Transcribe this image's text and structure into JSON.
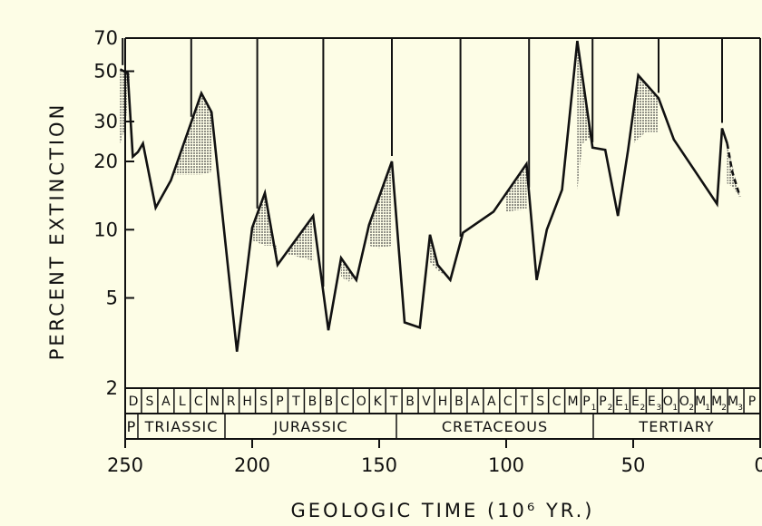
{
  "chart_data": {
    "type": "line",
    "title": "",
    "xlabel": "GEOLOGIC TIME (10⁶ YR.)",
    "ylabel": "PERCENT EXTINCTION",
    "x_reversed": true,
    "xlim": [
      250,
      0
    ],
    "ylim": [
      2,
      70
    ],
    "yscale": "log",
    "xticks": [
      250,
      200,
      150,
      100,
      50,
      0
    ],
    "xtick_labels": [
      "250",
      "200",
      "150",
      "100",
      "50",
      "0"
    ],
    "yticks": [
      2,
      5,
      10,
      20,
      30,
      50,
      70
    ],
    "ytick_labels": [
      "2",
      "5",
      "10",
      "20",
      "30",
      "50",
      "70"
    ],
    "grid": false,
    "legend": "none",
    "series": [
      {
        "x": [
          252,
          249,
          247,
          245,
          243,
          238,
          232,
          220,
          216,
          206,
          200,
          195,
          190,
          176,
          170,
          165,
          159,
          154,
          145,
          140,
          134,
          130,
          127,
          122,
          117,
          105,
          92,
          88,
          84,
          78,
          72,
          66,
          61,
          56,
          52,
          48,
          40,
          34,
          17,
          15,
          13
        ],
        "y": [
          51,
          49,
          21,
          22,
          24,
          12.5,
          16.5,
          40,
          33,
          2.9,
          10.2,
          14.5,
          7,
          11.5,
          3.6,
          7.5,
          6,
          10.5,
          20,
          3.9,
          3.7,
          9.5,
          7,
          6,
          9.7,
          12,
          19.5,
          6,
          10,
          15,
          68,
          23,
          22.5,
          11.5,
          22.5,
          48,
          38,
          25,
          13,
          28,
          24
        ]
      },
      {
        "x": [
          13,
          11,
          8
        ],
        "y": [
          24,
          18,
          14
        ],
        "dashed": true
      }
    ],
    "shaded_regions": [
      {
        "x": [
          252,
          249,
          248,
          250,
          252
        ],
        "upper": [
          51,
          49,
          49,
          28,
          24
        ]
      },
      {
        "x": [
          232,
          220,
          216
        ],
        "lower": [
          17.5,
          17.5,
          18
        ]
      },
      {
        "x": [
          200,
          195,
          190
        ],
        "lower": [
          9,
          8.5,
          8.5
        ]
      },
      {
        "x": [
          176,
          180,
          186
        ],
        "lower": [
          7.3,
          7.5,
          7.8
        ]
      },
      {
        "x": [
          159,
          162,
          165
        ],
        "lower": [
          6.3,
          5.9,
          6.2
        ]
      },
      {
        "x": [
          145,
          150,
          154
        ],
        "lower": [
          8.5,
          8.3,
          8.5
        ]
      },
      {
        "x": [
          130,
          127,
          124
        ],
        "lower": [
          7.2,
          6.6,
          6.3
        ]
      },
      {
        "x": [
          92,
          96,
          100
        ],
        "lower": [
          12.3,
          12.2,
          12
        ]
      },
      {
        "x": [
          66,
          70,
          72
        ],
        "lower": [
          26,
          24,
          15
        ]
      },
      {
        "x": [
          40,
          45,
          50
        ],
        "lower": [
          27,
          27,
          24
        ]
      },
      {
        "x": [
          13,
          11,
          8
        ],
        "lower": [
          16,
          15.5,
          14
        ]
      }
    ],
    "spikes": [
      251,
      224,
      198,
      172,
      145,
      118,
      91,
      66,
      40,
      15
    ],
    "stages": [
      "D",
      "S",
      "A",
      "L",
      "C",
      "N",
      "R",
      "H",
      "S",
      "P",
      "T",
      "B",
      "B",
      "C",
      "O",
      "K",
      "T",
      "B",
      "V",
      "H",
      "B",
      "A",
      "A",
      "C",
      "T",
      "S",
      "C",
      "M",
      "P",
      "P",
      "E",
      "E",
      "E",
      "O",
      "O",
      "M",
      "M",
      "M",
      "P"
    ],
    "stage_subscripts": [
      "",
      "",
      "",
      "",
      "",
      "",
      "",
      "",
      "",
      "",
      "",
      "",
      "",
      "",
      "",
      "",
      "",
      "",
      "",
      "",
      "",
      "",
      "",
      "",
      "",
      "",
      "",
      "",
      "1",
      "2",
      "1",
      "2",
      "3",
      "1",
      "2",
      "1",
      "2",
      "3",
      ""
    ],
    "periods": [
      "P",
      "TRIASSIC",
      "JURASSIC",
      "CRETACEOUS",
      "TERTIARY"
    ]
  }
}
